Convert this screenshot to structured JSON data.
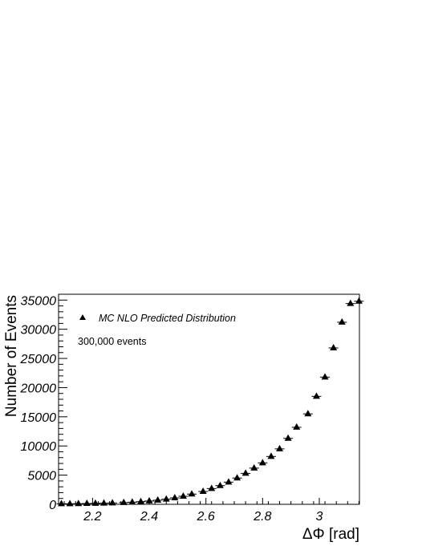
{
  "chart_data": {
    "type": "scatter",
    "marker": "triangle-up",
    "xlabel": "ΔΦ [rad]",
    "ylabel": "Number of Events",
    "xlim": [
      2.08,
      3.1416
    ],
    "ylim": [
      0,
      36000
    ],
    "x_ticks": [
      2.2,
      2.4,
      2.6,
      2.8,
      3.0
    ],
    "x_tick_labels": [
      "2.2",
      "2.4",
      "2.6",
      "2.8",
      "3"
    ],
    "y_ticks": [
      0,
      5000,
      10000,
      15000,
      20000,
      25000,
      30000,
      35000
    ],
    "y_tick_labels": [
      "0",
      "5000",
      "10000",
      "15000",
      "20000",
      "25000",
      "30000",
      "35000"
    ],
    "grid": false,
    "legend_position": "top-left",
    "series": [
      {
        "name": "MC NLO Predicted Distribution",
        "x": [
          2.09,
          2.12,
          2.15,
          2.18,
          2.21,
          2.24,
          2.27,
          2.31,
          2.34,
          2.37,
          2.4,
          2.43,
          2.46,
          2.49,
          2.52,
          2.55,
          2.59,
          2.62,
          2.65,
          2.68,
          2.71,
          2.74,
          2.77,
          2.8,
          2.83,
          2.86,
          2.89,
          2.92,
          2.96,
          2.99,
          3.02,
          3.05,
          3.08,
          3.11,
          3.14
        ],
        "y": [
          80,
          90,
          110,
          130,
          160,
          190,
          230,
          290,
          360,
          450,
          560,
          700,
          880,
          1100,
          1380,
          1750,
          2200,
          2700,
          3200,
          3800,
          4500,
          5300,
          6200,
          7100,
          8200,
          9500,
          11300,
          13200,
          15500,
          18500,
          21800,
          26800,
          31200,
          34400,
          34800
        ]
      }
    ],
    "annotations": [
      "300,000 events"
    ]
  }
}
